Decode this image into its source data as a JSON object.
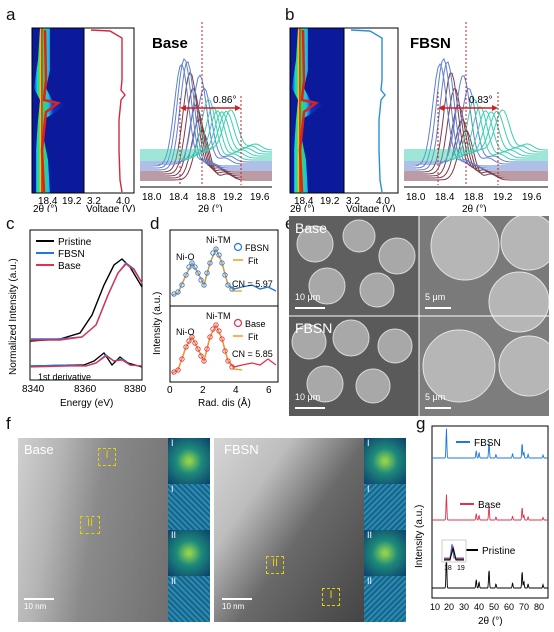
{
  "panels": {
    "a": "a",
    "b": "b",
    "c": "c",
    "d": "d",
    "e": "e",
    "f": "f",
    "g": "g"
  },
  "panel_a": {
    "title": "Base",
    "shift_label": "0.86°",
    "xaxis_2theta": "2θ (°)",
    "xaxis_voltage": "Voltage (V)",
    "ticks_heat": [
      "18.4",
      "19.2"
    ],
    "ticks_volt": [
      "3.2",
      "4.0"
    ],
    "ticks_xrd": [
      "18.0",
      "18.4",
      "18.8",
      "19.2",
      "19.6"
    ]
  },
  "panel_b": {
    "title": "FBSN",
    "shift_label": "0.83°",
    "xaxis_2theta": "2θ (°)",
    "xaxis_voltage": "Voltage (V)",
    "ticks_heat": [
      "18.4",
      "19.2"
    ],
    "ticks_volt": [
      "3.2",
      "4.0"
    ],
    "ticks_xrd": [
      "18.0",
      "18.4",
      "18.8",
      "19.2",
      "19.6"
    ]
  },
  "panel_c": {
    "ylabel": "Normalized Intensity (a.u.)",
    "xlabel": "Energy (eV)",
    "legend": [
      "Pristine",
      "FBSN",
      "Base"
    ],
    "annotation": "1st derivative",
    "ticks": [
      "8340",
      "8360",
      "8380"
    ]
  },
  "panel_d": {
    "ylabel": "Intensity (a.u.)",
    "xlabel": "Rad. dis (Å)",
    "top": {
      "peak1": "Ni-O",
      "peak2": "Ni-TM",
      "legend": [
        "FBSN",
        "Fit"
      ],
      "cn": "CN = 5.97"
    },
    "bottom": {
      "peak1": "Ni-O",
      "peak2": "Ni-TM",
      "legend": [
        "Base",
        "Fit"
      ],
      "cn": "CN = 5.85"
    },
    "ticks": [
      "0",
      "2",
      "4",
      "6"
    ]
  },
  "panel_e": {
    "label_top": "Base",
    "label_bottom": "FBSN",
    "scale_bars": [
      "10 μm",
      "5 μm",
      "10 μm",
      "5 μm"
    ]
  },
  "panel_f": {
    "label_left": "Base",
    "label_right": "FBSN",
    "roman": [
      "I",
      "II",
      "I",
      "II"
    ],
    "insets": [
      "I",
      "I",
      "II",
      "II",
      "I",
      "I",
      "II",
      "II"
    ],
    "scale": [
      "10 nm",
      "10 nm"
    ]
  },
  "panel_g": {
    "ylabel": "Intensity (a.u.)",
    "xlabel": "2θ (°)",
    "series": [
      "FBSN",
      "Base",
      "Pristine"
    ],
    "inset_ticks": [
      "18",
      "19"
    ],
    "ticks": [
      "10",
      "20",
      "30",
      "40",
      "50",
      "60",
      "70",
      "80"
    ]
  },
  "colors": {
    "fbsn": "#1f77e4",
    "base": "#e0324a",
    "pristine": "#000000",
    "fit": "#f09a1a"
  }
}
